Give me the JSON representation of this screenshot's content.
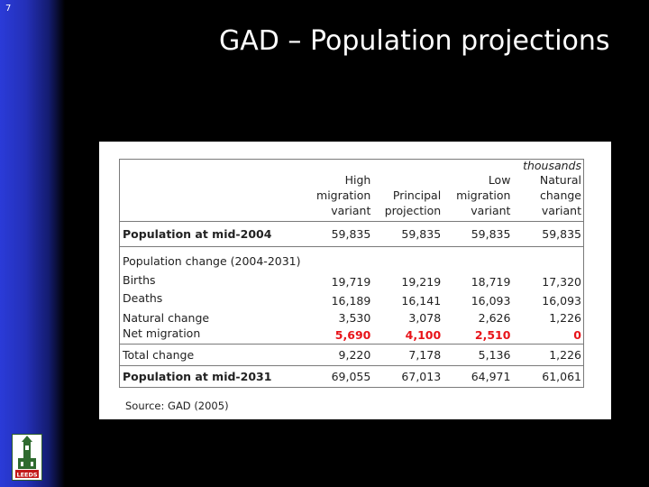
{
  "slide_number": "7",
  "title": "GAD – Population projections",
  "logo_text": "LEEDS",
  "table": {
    "units": "thousands",
    "headers": [
      [
        "High",
        "migration",
        "variant"
      ],
      [
        "",
        "Principal",
        "projection"
      ],
      [
        "Low",
        "migration",
        "variant"
      ],
      [
        "Natural",
        "change",
        "variant"
      ]
    ],
    "rows": {
      "pop2004": {
        "label": "Population at mid-2004",
        "values": [
          "59,835",
          "59,835",
          "59,835",
          "59,835"
        ]
      },
      "change_heading": "Population change (2004-2031)",
      "births": {
        "label": "Births",
        "values": [
          "19,719",
          "19,219",
          "18,719",
          "17,320"
        ]
      },
      "deaths": {
        "label": "Deaths",
        "values": [
          "16,189",
          "16,141",
          "16,093",
          "16,093"
        ]
      },
      "natural": {
        "label": "Natural change",
        "values": [
          "3,530",
          "3,078",
          "2,626",
          "1,226"
        ]
      },
      "netmig": {
        "label": "Net migration",
        "values": [
          "5,690",
          "4,100",
          "2,510",
          "0"
        ]
      },
      "total": {
        "label": "Total change",
        "values": [
          "9,220",
          "7,178",
          "5,136",
          "1,226"
        ]
      },
      "pop2031": {
        "label": "Population at mid-2031",
        "values": [
          "69,055",
          "67,013",
          "64,971",
          "61,061"
        ]
      }
    }
  },
  "source": "Source: GAD (2005)",
  "colors": {
    "sidebar": "#2430b8",
    "highlight": "#e8141a",
    "background": "#000000"
  }
}
